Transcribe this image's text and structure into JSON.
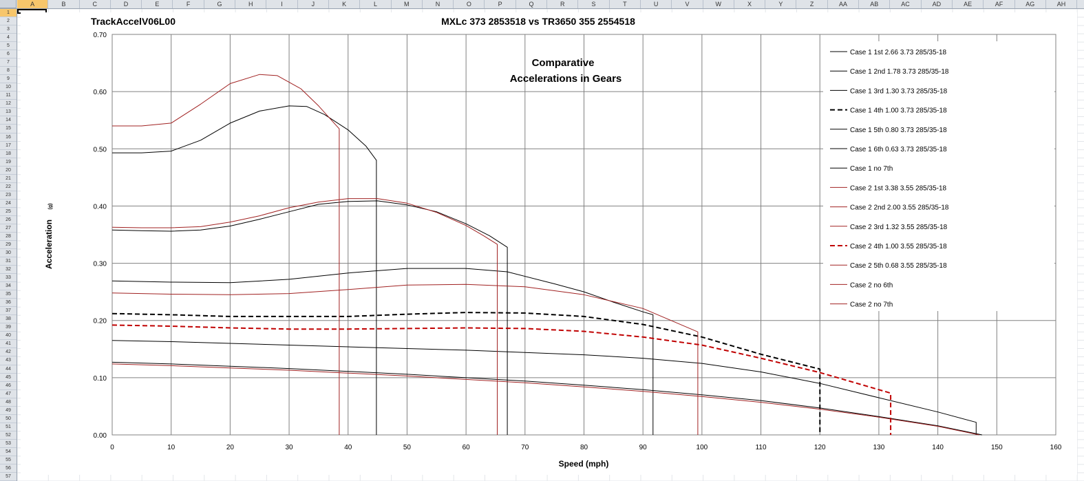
{
  "spreadsheet": {
    "columns": [
      "A",
      "B",
      "C",
      "D",
      "E",
      "F",
      "G",
      "H",
      "I",
      "J",
      "K",
      "L",
      "M",
      "N",
      "O",
      "P",
      "Q",
      "R",
      "S",
      "T",
      "U",
      "V",
      "W",
      "X",
      "Y",
      "Z",
      "AA",
      "AB",
      "AC",
      "AD",
      "AE",
      "AF",
      "AG",
      "AH"
    ],
    "selected_column": "A",
    "selected_row": "1",
    "row_count": 57
  },
  "chart_data": {
    "type": "line",
    "sheet_title": "TrackAccelV06L00",
    "title": "MXLc 373 2853518 vs TR3650 355 2554518",
    "annotation": [
      "Comparative",
      "Accelerations  in  Gears"
    ],
    "xlabel": "Speed (mph)",
    "ylabel": "Acceleration",
    "ylabel_unit": "(g)",
    "xlim": [
      0,
      160
    ],
    "ylim": [
      0,
      0.7
    ],
    "x_ticks": [
      0,
      10,
      20,
      30,
      40,
      50,
      60,
      70,
      80,
      90,
      100,
      110,
      120,
      130,
      140,
      150,
      160
    ],
    "x_tick_labels": [
      "0",
      "10",
      "20",
      "30",
      "40",
      "50",
      "60",
      "70",
      "80",
      "90",
      "100",
      "110",
      "120",
      "130",
      "140",
      "150",
      "160"
    ],
    "y_ticks": [
      0,
      0.1,
      0.2,
      0.3,
      0.4,
      0.5,
      0.6,
      0.7
    ],
    "y_tick_labels": [
      "0.00",
      "0.10",
      "0.20",
      "0.30",
      "0.40",
      "0.50",
      "0.60",
      "0.70"
    ],
    "grid": true,
    "legend_position": "right",
    "series": [
      {
        "name": "Case 1  1st  2.66  3.73  285/35-18",
        "color": "#000000",
        "width": 1,
        "dash": "",
        "x": [
          0,
          5,
          10,
          15,
          20,
          25,
          30,
          33,
          36,
          40,
          43,
          44.8,
          44.8
        ],
        "y": [
          0.493,
          0.493,
          0.496,
          0.515,
          0.545,
          0.566,
          0.575,
          0.574,
          0.56,
          0.533,
          0.505,
          0.48,
          0
        ]
      },
      {
        "name": "Case 1  2nd  1.78  3.73  285/35-18",
        "color": "#000000",
        "width": 1,
        "dash": "",
        "x": [
          0,
          5,
          10,
          15,
          20,
          25,
          30,
          35,
          40,
          45,
          50,
          55,
          60,
          64,
          67,
          67
        ],
        "y": [
          0.358,
          0.357,
          0.356,
          0.358,
          0.365,
          0.377,
          0.39,
          0.403,
          0.408,
          0.409,
          0.402,
          0.39,
          0.369,
          0.348,
          0.328,
          0
        ]
      },
      {
        "name": "Case 1  3rd  1.30  3.73  285/35-18",
        "color": "#000000",
        "width": 1,
        "dash": "",
        "x": [
          0,
          10,
          20,
          30,
          40,
          50,
          60,
          67,
          75,
          80,
          85,
          90,
          91.7,
          91.7
        ],
        "y": [
          0.269,
          0.267,
          0.266,
          0.272,
          0.283,
          0.291,
          0.291,
          0.285,
          0.264,
          0.25,
          0.232,
          0.215,
          0.21,
          0
        ]
      },
      {
        "name": "Case 1  4th  1.00  3.73  285/35-18",
        "color": "#000000",
        "width": 2,
        "dash": "7,4",
        "x": [
          0,
          10,
          20,
          30,
          40,
          50,
          60,
          70,
          80,
          90,
          100,
          110,
          120,
          120
        ],
        "y": [
          0.212,
          0.21,
          0.207,
          0.207,
          0.207,
          0.211,
          0.214,
          0.213,
          0.207,
          0.193,
          0.171,
          0.141,
          0.115,
          0
        ]
      },
      {
        "name": "Case 1  5th  0.80  3.73  285/35-18",
        "color": "#000000",
        "width": 1,
        "dash": "",
        "x": [
          0,
          10,
          20,
          30,
          40,
          50,
          60,
          70,
          80,
          90,
          100,
          110,
          120,
          130,
          140,
          146.5,
          146.5
        ],
        "y": [
          0.165,
          0.163,
          0.16,
          0.157,
          0.154,
          0.151,
          0.148,
          0.144,
          0.14,
          0.134,
          0.125,
          0.11,
          0.09,
          0.065,
          0.04,
          0.022,
          0
        ]
      },
      {
        "name": "Case 1  6th  0.63  3.73  285/35-18",
        "color": "#000000",
        "width": 1,
        "dash": "",
        "x": [
          0,
          10,
          20,
          30,
          40,
          50,
          60,
          70,
          80,
          90,
          100,
          110,
          120,
          130,
          140,
          147.5
        ],
        "y": [
          0.127,
          0.124,
          0.12,
          0.116,
          0.111,
          0.106,
          0.1,
          0.094,
          0.087,
          0.079,
          0.07,
          0.06,
          0.047,
          0.032,
          0.016,
          0
        ]
      },
      {
        "name": "Case 1 no 7th",
        "color": "#000000",
        "width": 1,
        "dash": "",
        "x": [],
        "y": []
      },
      {
        "name": "Case 2  1st  3.38  3.55  285/35-18",
        "color": "#a02020",
        "width": 1,
        "dash": "",
        "x": [
          0,
          5,
          10,
          15,
          20,
          25,
          28,
          32,
          35,
          38.5,
          38.5
        ],
        "y": [
          0.54,
          0.54,
          0.545,
          0.578,
          0.614,
          0.63,
          0.628,
          0.605,
          0.575,
          0.535,
          0
        ]
      },
      {
        "name": "Case 2  2nd  2.00  3.55  285/35-18",
        "color": "#a02020",
        "width": 1,
        "dash": "",
        "x": [
          0,
          5,
          10,
          15,
          20,
          25,
          30,
          35,
          40,
          45,
          50,
          55,
          60,
          63,
          65.3,
          65.3
        ],
        "y": [
          0.363,
          0.362,
          0.362,
          0.364,
          0.372,
          0.383,
          0.397,
          0.407,
          0.413,
          0.413,
          0.405,
          0.389,
          0.366,
          0.348,
          0.333,
          0
        ]
      },
      {
        "name": "Case 2  3rd  1.32  3.55  285/35-18",
        "color": "#a02020",
        "width": 1,
        "dash": "",
        "x": [
          0,
          10,
          20,
          30,
          40,
          50,
          60,
          70,
          80,
          90,
          99.3,
          99.3
        ],
        "y": [
          0.248,
          0.246,
          0.245,
          0.247,
          0.254,
          0.262,
          0.263,
          0.259,
          0.245,
          0.221,
          0.18,
          0
        ]
      },
      {
        "name": "Case 2  4th  1.00  3.55  285/35-18",
        "color": "#c00000",
        "width": 2,
        "dash": "7,4",
        "x": [
          0,
          10,
          20,
          30,
          40,
          50,
          60,
          70,
          80,
          90,
          100,
          110,
          120,
          132,
          132
        ],
        "y": [
          0.192,
          0.19,
          0.187,
          0.185,
          0.185,
          0.186,
          0.187,
          0.186,
          0.181,
          0.171,
          0.157,
          0.134,
          0.109,
          0.073,
          0
        ]
      },
      {
        "name": "Case 2  5th  0.68  3.55  285/35-18",
        "color": "#a02020",
        "width": 1,
        "dash": "",
        "x": [
          0,
          10,
          20,
          30,
          40,
          50,
          60,
          70,
          80,
          90,
          100,
          110,
          120,
          130,
          140,
          147
        ],
        "y": [
          0.124,
          0.121,
          0.117,
          0.113,
          0.108,
          0.103,
          0.097,
          0.091,
          0.084,
          0.076,
          0.067,
          0.057,
          0.045,
          0.031,
          0.015,
          0
        ]
      },
      {
        "name": "Case 2 no 6th",
        "color": "#a02020",
        "width": 1,
        "dash": "",
        "x": [],
        "y": []
      },
      {
        "name": "Case 2 no 7th",
        "color": "#a02020",
        "width": 1,
        "dash": "",
        "x": [],
        "y": []
      }
    ]
  }
}
